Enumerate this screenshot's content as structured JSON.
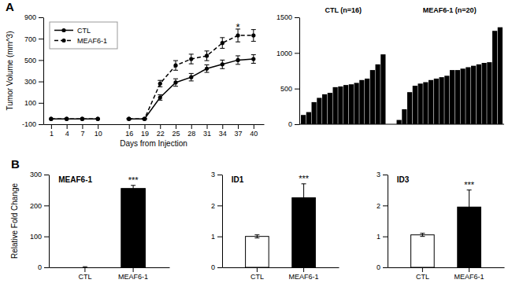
{
  "chart_data": [
    {
      "type": "line",
      "xlabel": "Days from Injection",
      "ylabel": "Tumor Volume (mm^3)",
      "x": [
        1,
        4,
        7,
        10,
        16,
        19,
        22,
        25,
        28,
        31,
        34,
        37,
        40
      ],
      "series": [
        {
          "name": "CTL",
          "color": "#000000",
          "line_style": "solid",
          "marker": "circle",
          "values": [
            -50,
            -50,
            -50,
            -50,
            -50,
            -50,
            150,
            290,
            340,
            420,
            460,
            500,
            510
          ],
          "errors": [
            null,
            null,
            null,
            null,
            5,
            5,
            25,
            35,
            35,
            35,
            40,
            40,
            40
          ]
        },
        {
          "name": "MEAF6-1",
          "color": "#000000",
          "line_style": "dashed",
          "marker": "circle",
          "values": [
            -50,
            -50,
            -50,
            -50,
            -50,
            -50,
            280,
            450,
            510,
            540,
            660,
            730,
            730
          ],
          "errors": [
            null,
            null,
            null,
            null,
            5,
            5,
            30,
            45,
            45,
            45,
            50,
            60,
            55
          ]
        }
      ],
      "xlim": [
        -0.5,
        42
      ],
      "xticks": [
        1,
        4,
        7,
        10,
        16,
        19,
        22,
        25,
        28,
        31,
        34,
        37,
        40
      ],
      "ylim": [
        -100,
        900
      ],
      "yticks": [
        -100,
        100,
        300,
        500,
        700,
        900
      ],
      "legend": "upper left",
      "annotations": [
        {
          "text": "A"
        },
        {
          "text": "*",
          "x": 37,
          "y": 810
        }
      ]
    },
    {
      "type": "bar",
      "series": [
        {
          "name": "CTL (n=16)",
          "values": [
            130,
            170,
            310,
            370,
            420,
            440,
            520,
            530,
            550,
            560,
            580,
            620,
            640,
            760,
            840,
            980
          ]
        },
        {
          "name": "MEAF6-1 (n=20)",
          "values": [
            60,
            210,
            450,
            540,
            570,
            590,
            620,
            640,
            660,
            680,
            760,
            760,
            780,
            800,
            820,
            840,
            860,
            870,
            1310,
            1360
          ]
        }
      ],
      "color": "#000000",
      "ylim": [
        0,
        1500
      ],
      "yticks": [
        0,
        500,
        1000,
        1500
      ],
      "tick_labels": "y"
    },
    {
      "type": "bar",
      "title": "MEAF6-1",
      "ylabel": "Relative Fold Change",
      "categories": [
        "CTL",
        "MEAF6-1"
      ],
      "values": [
        0,
        255
      ],
      "errors": [
        2,
        10
      ],
      "colors": [
        "#ffffff",
        "#000000"
      ],
      "ylim": [
        0,
        300
      ],
      "yticks": [
        0,
        100,
        200,
        300
      ],
      "annotations": [
        {
          "text": "B"
        },
        {
          "text": "***",
          "x": "MEAF6-1"
        }
      ]
    },
    {
      "type": "bar",
      "title": "ID1",
      "categories": [
        "CTL",
        "MEAF6-1"
      ],
      "values": [
        1.0,
        2.25
      ],
      "errors": [
        0.05,
        0.45
      ],
      "colors": [
        "#ffffff",
        "#000000"
      ],
      "ylim": [
        0,
        3
      ],
      "yticks": [
        0,
        1,
        2,
        3
      ],
      "annotations": [
        {
          "text": "***",
          "x": "MEAF6-1"
        }
      ]
    },
    {
      "type": "bar",
      "title": "ID3",
      "categories": [
        "CTL",
        "MEAF6-1"
      ],
      "values": [
        1.05,
        1.95
      ],
      "errors": [
        0.05,
        0.55
      ],
      "colors": [
        "#ffffff",
        "#000000"
      ],
      "ylim": [
        0,
        3
      ],
      "yticks": [
        0,
        1,
        2,
        3
      ],
      "annotations": [
        {
          "text": "***",
          "x": "MEAF6-1"
        }
      ]
    }
  ]
}
